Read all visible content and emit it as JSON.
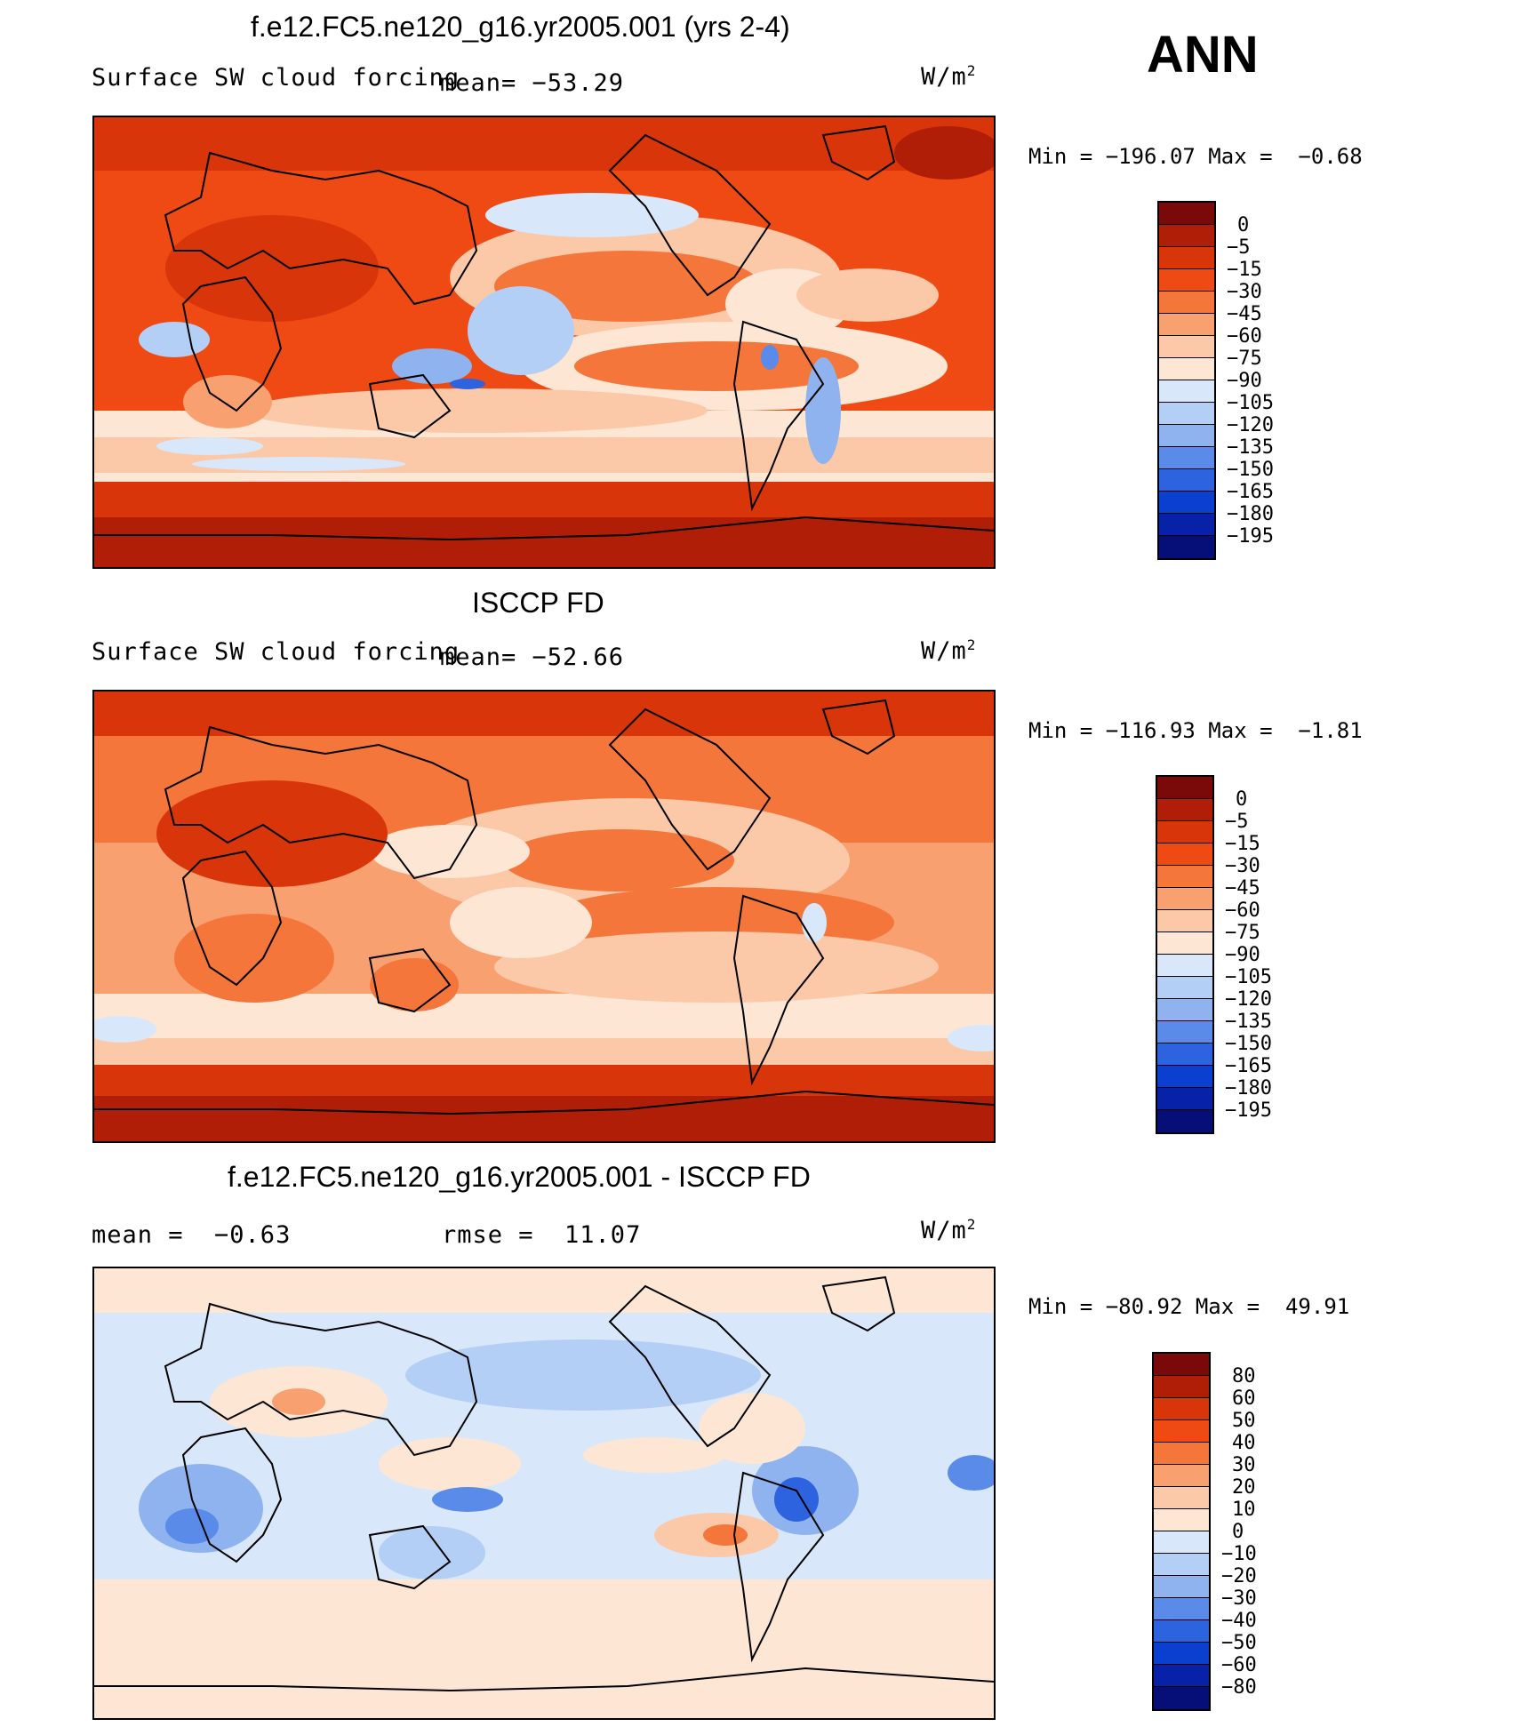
{
  "season": "ANN",
  "panels": [
    {
      "id": "model",
      "title": "f.e12.FC5.ne120_g16.yr2005.001 (yrs 2-4)",
      "left_text": "Surface SW cloud forcing",
      "mid_text": "mean= −53.29",
      "units": "W/m",
      "units_exp": "2",
      "minmax": "Min = −196.07 Max =  −0.68",
      "levels": [
        "0",
        "−5",
        "−15",
        "−30",
        "−45",
        "−60",
        "−75",
        "−90",
        "−105",
        "−120",
        "−135",
        "−150",
        "−165",
        "−180",
        "−195"
      ]
    },
    {
      "id": "obs",
      "title": "ISCCP FD",
      "left_text": "Surface SW cloud forcing",
      "mid_text": "mean= −52.66",
      "units": "W/m",
      "units_exp": "2",
      "minmax": "Min = −116.93 Max =  −1.81",
      "levels": [
        "0",
        "−5",
        "−15",
        "−30",
        "−45",
        "−60",
        "−75",
        "−90",
        "−105",
        "−120",
        "−135",
        "−150",
        "−165",
        "−180",
        "−195"
      ]
    },
    {
      "id": "diff",
      "title": "f.e12.FC5.ne120_g16.yr2005.001 - ISCCP FD",
      "left_text": "mean =  −0.63",
      "mid_text": "rmse =  11.07",
      "units": "W/m",
      "units_exp": "2",
      "minmax": "Min = −80.92 Max =  49.91",
      "levels": [
        "80",
        "60",
        "50",
        "40",
        "30",
        "20",
        "10",
        "0",
        "−10",
        "−20",
        "−30",
        "−40",
        "−50",
        "−60",
        "−80"
      ]
    }
  ],
  "colors": {
    "abs_scale": [
      "#7a0a0a",
      "#b01e08",
      "#d8360a",
      "#f04a14",
      "#f5763a",
      "#f8a070",
      "#fbc8a8",
      "#fde6d4",
      "#d8e8fa",
      "#b4cff5",
      "#8fb3ef",
      "#5a8be8",
      "#2e63e0",
      "#0a3fd0",
      "#0722a8",
      "#060f78"
    ],
    "diff_scale": [
      "#7a0a0a",
      "#b01e08",
      "#d8360a",
      "#f04a14",
      "#f5763a",
      "#f8a070",
      "#fbc8a8",
      "#fde6d4",
      "#d8e8fa",
      "#b4cff5",
      "#8fb3ef",
      "#5a8be8",
      "#2e63e0",
      "#0a3fd0",
      "#0722a8",
      "#060f78"
    ]
  }
}
